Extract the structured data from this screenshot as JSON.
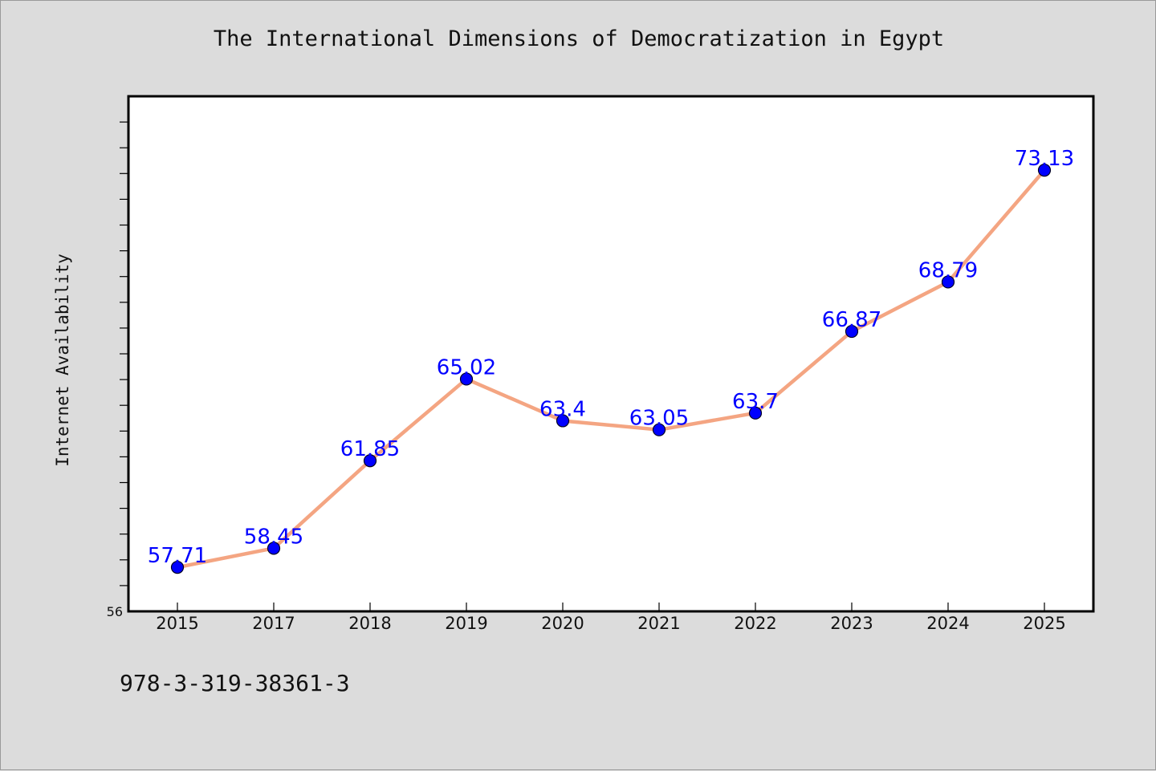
{
  "colors": {
    "background": "#dcdcdc",
    "plot_background": "#ffffff",
    "line": "#f4a582",
    "marker": "#0000ff",
    "data_label": "#0000ff"
  },
  "chart_data": {
    "type": "line",
    "title": "The International Dimensions of Democratization in Egypt",
    "xlabel": "",
    "ylabel": "Internet Availability",
    "categories": [
      "2015",
      "2017",
      "2018",
      "2019",
      "2020",
      "2021",
      "2022",
      "2023",
      "2024",
      "2025"
    ],
    "series": [
      {
        "values": [
          57.71,
          58.45,
          61.85,
          65.02,
          63.4,
          63.05,
          63.7,
          66.87,
          68.79,
          73.13
        ],
        "labels": [
          "57.71",
          "58.45",
          "61.85",
          "65.02",
          "63.4",
          "63.05",
          "63.7",
          "66.87",
          "68.79",
          "73.13"
        ]
      }
    ],
    "ylim": [
      56,
      76
    ],
    "y_tick_labels": [
      "56"
    ],
    "grid": false,
    "legend": "none"
  },
  "footer": {
    "isbn": "978-3-319-38361-3"
  }
}
